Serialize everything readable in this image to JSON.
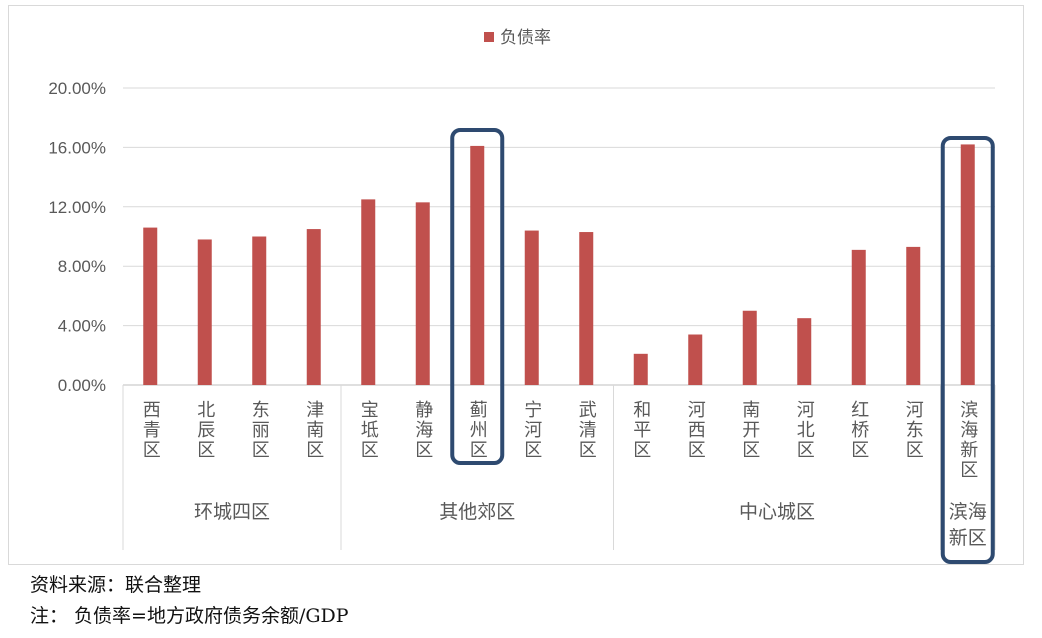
{
  "chart_data": {
    "type": "bar",
    "legend": {
      "position": "top",
      "entries": [
        "负债率"
      ]
    },
    "series": [
      {
        "name": "负债率",
        "color": "#c0504d",
        "values": [
          10.6,
          9.8,
          10.0,
          10.5,
          12.5,
          12.3,
          16.1,
          10.4,
          10.3,
          2.1,
          3.4,
          5.0,
          4.5,
          9.1,
          9.3,
          16.2
        ]
      }
    ],
    "categories": [
      "西青区",
      "北辰区",
      "东丽区",
      "津南区",
      "宝坻区",
      "静海区",
      "蓟州区",
      "宁河区",
      "武清区",
      "和平区",
      "河西区",
      "南开区",
      "河北区",
      "红桥区",
      "河东区",
      "滨海新区"
    ],
    "groups": [
      {
        "label": "环城四区",
        "count": 4
      },
      {
        "label": "其他郊区",
        "count": 5
      },
      {
        "label": "中心城区",
        "count": 6
      },
      {
        "label": "滨海新区",
        "count": 1
      }
    ],
    "highlighted": [
      "蓟州区",
      "滨海新区"
    ],
    "highlight_color": "#2e4a70",
    "ylim": [
      0,
      20
    ],
    "yticks": [
      "0.00%",
      "4.00%",
      "8.00%",
      "12.00%",
      "16.00%",
      "20.00%"
    ],
    "grid": true
  },
  "notes": {
    "source": "资料来源：联合整理",
    "note": "注：  负债率=地方政府债务余额/GDP"
  }
}
